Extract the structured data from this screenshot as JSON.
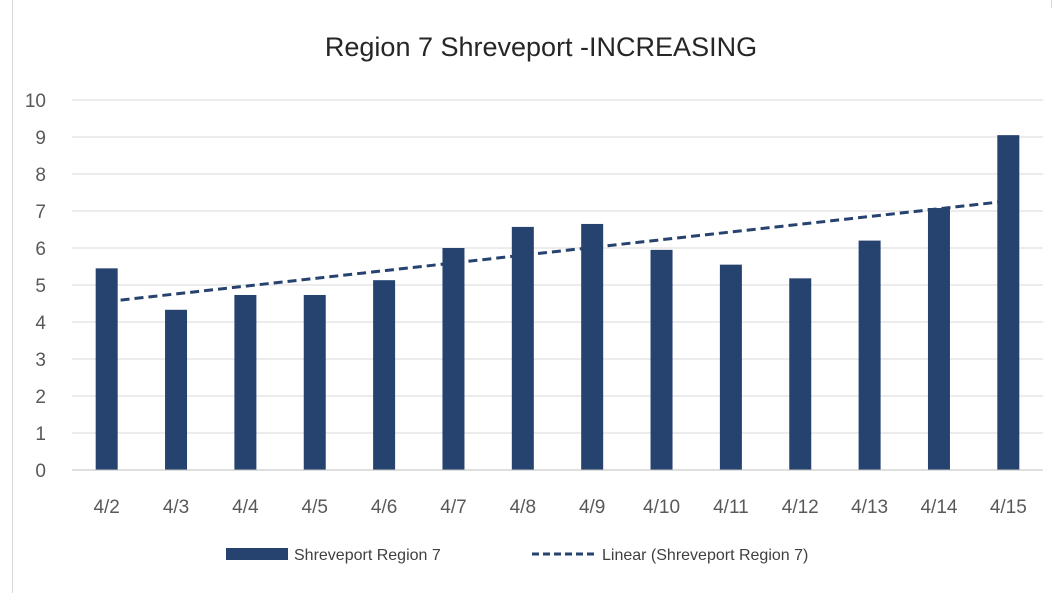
{
  "chart_data": {
    "type": "bar",
    "title": "Region 7 Shreveport -INCREASING",
    "xlabel": "",
    "ylabel": "",
    "categories": [
      "4/2",
      "4/3",
      "4/4",
      "4/5",
      "4/6",
      "4/7",
      "4/8",
      "4/9",
      "4/10",
      "4/11",
      "4/12",
      "4/13",
      "4/14",
      "4/15"
    ],
    "series": [
      {
        "name": "Shreveport Region 7",
        "values": [
          5.45,
          4.33,
          4.73,
          4.73,
          5.13,
          6.0,
          6.57,
          6.65,
          5.95,
          5.55,
          5.18,
          6.2,
          7.08,
          9.05
        ],
        "color": "#26426f"
      }
    ],
    "trendline": {
      "name": "Linear (Shreveport Region 7)",
      "type": "linear",
      "start": 4.55,
      "end": 7.27,
      "color": "#26426f",
      "style": "dashed"
    },
    "ylim": [
      0,
      10
    ],
    "yticks": [
      0,
      1,
      2,
      3,
      4,
      5,
      6,
      7,
      8,
      9,
      10
    ],
    "grid": true,
    "legend": "bottom",
    "colors": {
      "bar": "#26426f",
      "grid": "#d9d9d9",
      "axis": "#bfbfbf"
    }
  }
}
